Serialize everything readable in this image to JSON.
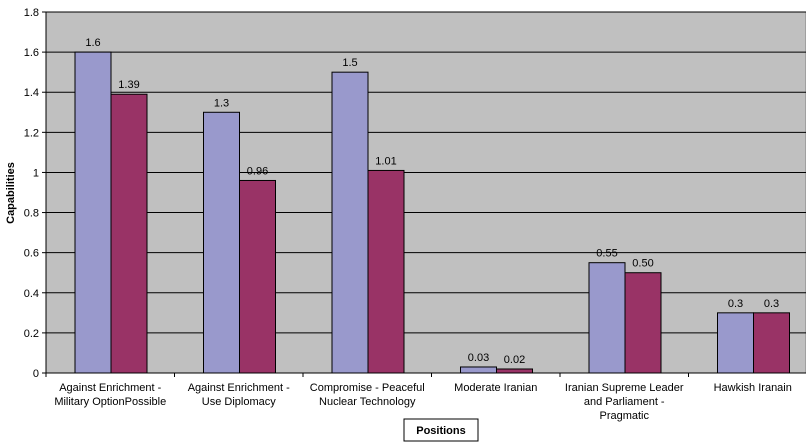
{
  "colors": {
    "plot_background": "#c0c0c0",
    "series_1": "#9999cc",
    "series_2": "#993366",
    "gridline": "#000000",
    "bar_outline": "#000000"
  },
  "chart_data": {
    "type": "bar",
    "title": "",
    "xlabel": "Positions",
    "ylabel": "Capabilities",
    "ylim": [
      0,
      1.8
    ],
    "yticks": [
      "0",
      "0.2",
      "0.4",
      "0.6",
      "0.8",
      "1",
      "1.2",
      "1.4",
      "1.6",
      "1.8"
    ],
    "ytick_values": [
      0,
      0.2,
      0.4,
      0.6,
      0.8,
      1.0,
      1.2,
      1.4,
      1.6,
      1.8
    ],
    "grid": true,
    "legend": "none",
    "categories": [
      [
        "Against Enrichment -",
        "Military OptionPossible"
      ],
      [
        "Against Enrichment -",
        "Use Diplomacy"
      ],
      [
        "Compromise - Peaceful",
        "Nuclear Technology"
      ],
      [
        "Moderate Iranian"
      ],
      [
        "Iranian Supreme Leader",
        "and Parliament -",
        "Pragmatic"
      ],
      [
        "Hawkish Iranain"
      ]
    ],
    "series": [
      {
        "values": [
          1.6,
          1.3,
          1.5,
          0.03,
          0.55,
          0.3
        ],
        "labels": [
          "1.6",
          "1.3",
          "1.5",
          "0.03",
          "0.55",
          "0.3"
        ]
      },
      {
        "values": [
          1.39,
          0.96,
          1.01,
          0.02,
          0.5,
          0.3
        ],
        "labels": [
          "1.39",
          "0.96",
          "1.01",
          "0.02",
          "0.50",
          "0.3"
        ]
      }
    ]
  }
}
